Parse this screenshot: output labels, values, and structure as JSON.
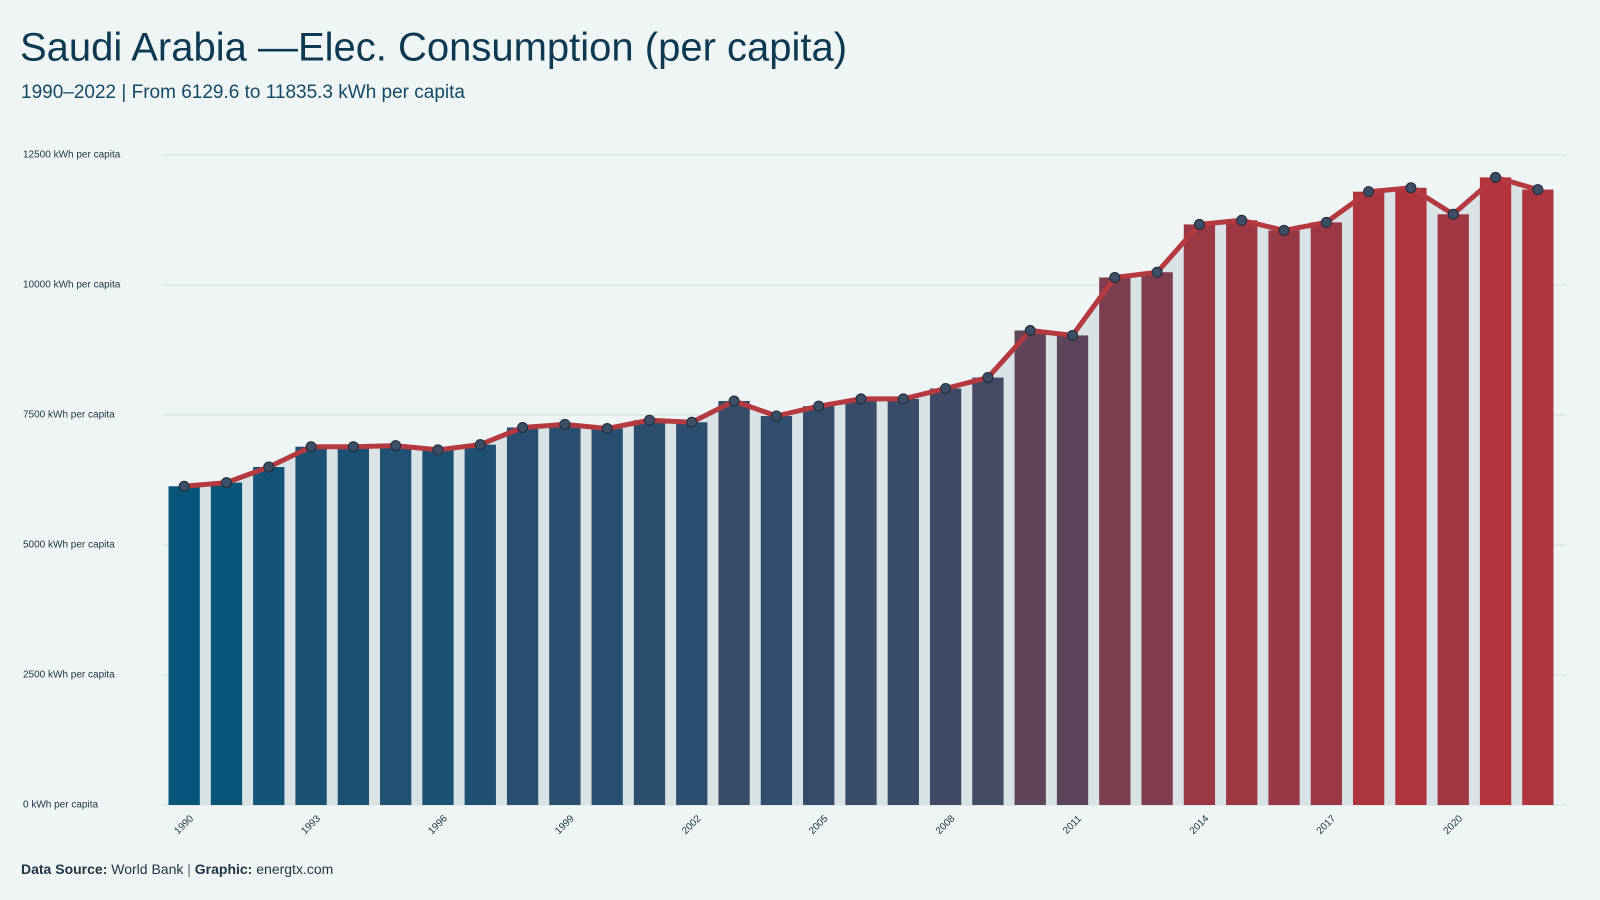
{
  "chart_data": {
    "type": "bar_line",
    "title": "Saudi Arabia —Elec. Consumption (per capita)",
    "subtitle": "1990–2022 | From 6129.6 to 11835.3 kWh per capita",
    "categories": [
      "1990",
      null,
      null,
      "1993",
      null,
      null,
      "1996",
      null,
      null,
      "1999",
      null,
      null,
      "2002",
      null,
      null,
      "2005",
      null,
      null,
      "2008",
      null,
      null,
      "2011",
      null,
      null,
      "2014",
      null,
      null,
      "2017",
      null,
      null,
      "2020",
      null,
      null
    ],
    "values": [
      6129.6,
      6200,
      6500,
      6890,
      6890,
      6910,
      6830,
      6930,
      7260,
      7320,
      7240,
      7400,
      7360,
      7770,
      7480,
      7670,
      7810,
      7810,
      8010,
      8220,
      9125,
      9030,
      10145,
      10245,
      11165,
      11245,
      11050,
      11205,
      11795,
      11870,
      11360,
      12070,
      11835.3
    ],
    "ylim": [
      0,
      12500
    ],
    "yticks": [
      {
        "value": 0,
        "label": "0 kWh per capita"
      },
      {
        "value": 2500,
        "label": "2500 kWh per capita"
      },
      {
        "value": 5000,
        "label": "5000 kWh per capita"
      },
      {
        "value": 7500,
        "label": "7500 kWh per capita"
      },
      {
        "value": 10000,
        "label": "10000 kWh per capita"
      },
      {
        "value": 12500,
        "label": "12500 kWh per capita"
      }
    ],
    "grid": true,
    "colorscale": [
      "#07557b",
      "#b5333a"
    ],
    "area_color": "#d9e2e4",
    "line_color": "#b53a3f",
    "marker_color": "#3d4f66"
  },
  "footer": {
    "source_label": "Data Source:",
    "source": "World Bank",
    "separator": "|",
    "graphic_label": "Graphic:",
    "graphic": "energtx.com"
  }
}
